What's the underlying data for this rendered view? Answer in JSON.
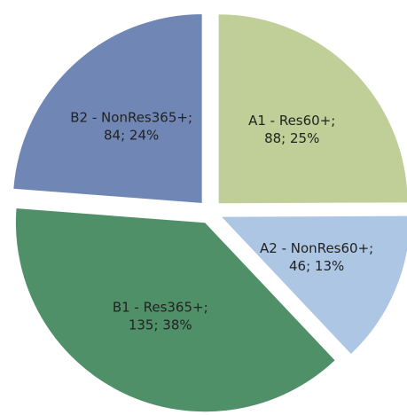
{
  "chart_data": {
    "type": "pie",
    "categories": [
      "A1 - Res60+;",
      "A2 - NonRes60+;",
      "B1 - Res365+;",
      "B2 - NonRes365+;"
    ],
    "values": [
      88,
      46,
      135,
      84
    ],
    "value_labels": [
      "88; 25%",
      "46; 13%",
      "135; 38%",
      "84; 24%"
    ],
    "colors": [
      "#bfcf97",
      "#adc6e4",
      "#4f9068",
      "#7087b5"
    ]
  }
}
